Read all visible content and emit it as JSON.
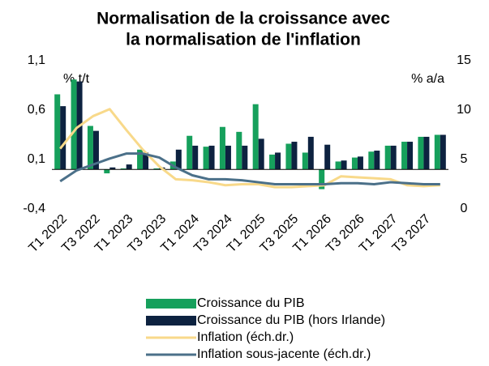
{
  "chart_data": {
    "type": "bar_line",
    "title": [
      "Normalisation de la croissance avec",
      "la normalisation de l'inflation"
    ],
    "y_label": "%  t/t",
    "y2_label": "% a/a",
    "categories": [
      "T1 2022",
      null,
      "T3 2022",
      null,
      "T1 2023",
      null,
      "T3 2023",
      null,
      "T1 2024",
      null,
      "T3 2024",
      null,
      "T1 2025",
      null,
      "T3 2025",
      null,
      "T1 2026",
      null,
      "T3 2026",
      null,
      "T1 2027",
      null,
      "T3 2027",
      null
    ],
    "ylim": [
      -0.4,
      1.1
    ],
    "yticks": [
      {
        "value": -0.4,
        "label": "-0,4"
      },
      {
        "value": 0.1,
        "label": "0,1"
      },
      {
        "value": 0.6,
        "label": "0,6"
      },
      {
        "value": 1.1,
        "label": "1,1"
      }
    ],
    "y2lim": [
      0,
      15
    ],
    "y2ticks": [
      0,
      5,
      10,
      15
    ],
    "series": [
      {
        "name": "Croissance du PIB",
        "kind": "bar",
        "color": "#16a05c",
        "values": [
          0.76,
          0.91,
          0.44,
          -0.04,
          0.01,
          0.2,
          0.01,
          0.08,
          0.34,
          0.23,
          0.43,
          0.38,
          0.66,
          0.15,
          0.26,
          0.17,
          -0.2,
          0.08,
          0.12,
          0.18,
          0.24,
          0.28,
          0.33,
          0.35
        ]
      },
      {
        "name": "Croissance du PIB (hors Irlande)",
        "kind": "bar",
        "color": "#0d2240",
        "values": [
          0.64,
          0.89,
          0.39,
          0.02,
          0.05,
          0.17,
          0.02,
          0.2,
          0.24,
          0.24,
          0.24,
          0.24,
          0.31,
          0.17,
          0.28,
          0.33,
          0.25,
          0.09,
          0.13,
          0.19,
          0.24,
          0.28,
          0.33,
          0.35
        ]
      },
      {
        "name": "Inflation (éch.dr.)",
        "kind": "line",
        "axis": "y2",
        "color": "#f8d98a",
        "values": [
          6.1,
          8.2,
          9.4,
          10.1,
          8.0,
          6.0,
          4.3,
          3.0,
          2.9,
          2.7,
          2.4,
          2.5,
          2.5,
          2.2,
          2.2,
          2.3,
          2.4,
          3.3,
          3.2,
          3.1,
          3.0,
          2.4,
          2.3,
          2.4
        ]
      },
      {
        "name": "Inflation sous-jacente (éch.dr.)",
        "kind": "line",
        "axis": "y2",
        "color": "#4b7089",
        "values": [
          2.8,
          3.9,
          4.5,
          5.1,
          5.6,
          5.6,
          5.2,
          4.2,
          3.4,
          3.0,
          3.0,
          2.9,
          2.7,
          2.5,
          2.5,
          2.5,
          2.5,
          2.6,
          2.6,
          2.5,
          2.7,
          2.6,
          2.5,
          2.5
        ]
      }
    ]
  }
}
